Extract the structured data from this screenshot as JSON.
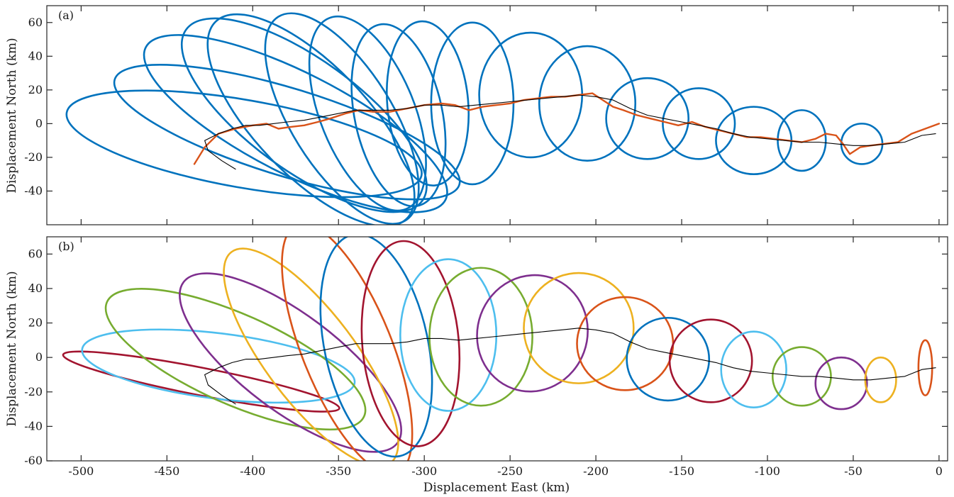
{
  "chart_data": [
    {
      "type": "line",
      "panel_label": "(a)",
      "xlabel": "",
      "ylabel": "Displacement North (km)",
      "xlim": [
        -520,
        5
      ],
      "ylim": [
        -60,
        70
      ],
      "yticks": [
        -40,
        -20,
        0,
        20,
        40,
        60
      ],
      "xticks": [
        -500,
        -450,
        -400,
        -350,
        -300,
        -250,
        -200,
        -150,
        -100,
        -50,
        0
      ],
      "show_xtick_labels": false,
      "colors": {
        "loops": "#0072BD",
        "orange": "#D95319",
        "black": "#000000"
      },
      "loops": [
        {
          "cx": -405,
          "cy": -12,
          "rx": 105,
          "ry": 26,
          "angle": -10
        },
        {
          "cx": -380,
          "cy": -5,
          "rx": 105,
          "ry": 26,
          "angle": -17
        },
        {
          "cx": -375,
          "cy": 0,
          "rx": 98,
          "ry": 30,
          "angle": -27
        },
        {
          "cx": -370,
          "cy": 5,
          "rx": 85,
          "ry": 33,
          "angle": -36
        },
        {
          "cx": -366,
          "cy": 2,
          "rx": 80,
          "ry": 33,
          "angle": -46
        },
        {
          "cx": -348,
          "cy": 3,
          "rx": 70,
          "ry": 30,
          "angle": -58
        },
        {
          "cx": -333,
          "cy": 6,
          "rx": 60,
          "ry": 28,
          "angle": -68
        },
        {
          "cx": -315,
          "cy": 5,
          "rx": 54,
          "ry": 26,
          "angle": -78
        },
        {
          "cx": -298,
          "cy": 12,
          "rx": 48,
          "ry": 24,
          "angle": -85
        },
        {
          "cx": -272,
          "cy": 12,
          "rx": 24,
          "ry": 48,
          "angle": 0
        },
        {
          "cx": -238,
          "cy": 17,
          "rx": 30,
          "ry": 37,
          "angle": 0
        },
        {
          "cx": -205,
          "cy": 12,
          "rx": 28,
          "ry": 34,
          "angle": 0
        },
        {
          "cx": -170,
          "cy": 3,
          "rx": 24,
          "ry": 24,
          "angle": 0
        },
        {
          "cx": -140,
          "cy": 0,
          "rx": 21,
          "ry": 21,
          "angle": 0
        },
        {
          "cx": -108,
          "cy": -10,
          "rx": 22,
          "ry": 20,
          "angle": 0
        },
        {
          "cx": -80,
          "cy": -10,
          "rx": 14,
          "ry": 18,
          "angle": 0
        },
        {
          "cx": -45,
          "cy": -12,
          "rx": 12,
          "ry": 12,
          "angle": 0
        }
      ],
      "series": [
        {
          "name": "",
          "color": "#D95319",
          "x": [
            -434,
            -428,
            -420,
            -410,
            -400,
            -392,
            -385,
            -378,
            -370,
            -362,
            -355,
            -346,
            -338,
            -330,
            -320,
            -310,
            -300,
            -290,
            -282,
            -274,
            -266,
            -258,
            -250,
            -242,
            -234,
            -226,
            -218,
            -210,
            -202,
            -196,
            -190,
            -184,
            -176,
            -168,
            -160,
            -152,
            -144,
            -136,
            -128,
            -120,
            -112,
            -104,
            -96,
            -88,
            -80,
            -72,
            -66,
            -60,
            -56,
            -52,
            -46,
            -40,
            -32,
            -24,
            -16,
            -8,
            0
          ],
          "y": [
            -24,
            -14,
            -6,
            -3,
            -1,
            0,
            -3,
            -2,
            -1,
            1,
            3,
            6,
            8,
            7,
            7,
            9,
            11,
            12,
            11,
            8,
            10,
            11,
            12,
            14,
            15,
            16,
            16,
            17,
            18,
            14,
            10,
            8,
            5,
            3,
            1,
            -1,
            1,
            -2,
            -4,
            -6,
            -8,
            -8,
            -9,
            -10,
            -11,
            -9,
            -6,
            -7,
            -12,
            -18,
            -14,
            -13,
            -12,
            -11,
            -6,
            -3,
            0
          ]
        },
        {
          "name": "",
          "color": "#000000",
          "x": [
            -410,
            -418,
            -426,
            -428,
            -420,
            -412,
            -404,
            -396,
            -388,
            -380,
            -370,
            -360,
            -350,
            -340,
            -330,
            -320,
            -310,
            -300,
            -290,
            -280,
            -270,
            -260,
            -250,
            -240,
            -230,
            -220,
            -210,
            -200,
            -190,
            -180,
            -170,
            -160,
            -150,
            -140,
            -130,
            -120,
            -110,
            -100,
            -90,
            -80,
            -70,
            -60,
            -50,
            -40,
            -30,
            -20,
            -10,
            -2
          ],
          "y": [
            -27,
            -22,
            -16,
            -10,
            -6,
            -3,
            -1,
            -1,
            0,
            1,
            2,
            4,
            6,
            8,
            8,
            8,
            9,
            11,
            11,
            10,
            11,
            12,
            13,
            14,
            15,
            16,
            17,
            16,
            14,
            9,
            5,
            3,
            1,
            -1,
            -3,
            -6,
            -8,
            -9,
            -10,
            -11,
            -11,
            -12,
            -13,
            -13,
            -12,
            -11,
            -7,
            -6
          ]
        }
      ]
    },
    {
      "type": "line",
      "panel_label": "(b)",
      "xlabel": "Displacement East (km)",
      "ylabel": "Displacement North (km)",
      "xlim": [
        -520,
        5
      ],
      "ylim": [
        -60,
        70
      ],
      "yticks": [
        -60,
        -40,
        -20,
        0,
        20,
        40,
        60
      ],
      "xticks": [
        -500,
        -450,
        -400,
        -350,
        -300,
        -250,
        -200,
        -150,
        -100,
        -50,
        0
      ],
      "xtick_labels": [
        "-500",
        "-450",
        "-400",
        "-350",
        "-300",
        "-250",
        "-200",
        "-150",
        "-100",
        "-50",
        "0"
      ],
      "ellipses": [
        {
          "cx": -430,
          "cy": -14,
          "rx": 82,
          "ry": 8,
          "angle": -11,
          "color": "#A2142F"
        },
        {
          "cx": -420,
          "cy": -5,
          "rx": 80,
          "ry": 19,
          "angle": -7,
          "color": "#4DBEEE"
        },
        {
          "cx": -410,
          "cy": -1,
          "rx": 82,
          "ry": 26,
          "angle": -24,
          "color": "#77AC30"
        },
        {
          "cx": -378,
          "cy": -3,
          "rx": 78,
          "ry": 28,
          "angle": -37,
          "color": "#7E2F8E"
        },
        {
          "cx": -366,
          "cy": 0,
          "rx": 77,
          "ry": 26,
          "angle": -53,
          "color": "#EDB120"
        },
        {
          "cx": -345,
          "cy": 5,
          "rx": 78,
          "ry": 26,
          "angle": -68,
          "color": "#D95319"
        },
        {
          "cx": -328,
          "cy": 7,
          "rx": 66,
          "ry": 30,
          "angle": -78,
          "color": "#0072BD"
        },
        {
          "cx": -308,
          "cy": 8,
          "rx": 60,
          "ry": 28,
          "angle": -85,
          "color": "#A2142F"
        },
        {
          "cx": -286,
          "cy": 13,
          "rx": 28,
          "ry": 44,
          "angle": 0,
          "color": "#4DBEEE"
        },
        {
          "cx": -267,
          "cy": 12,
          "rx": 30,
          "ry": 40,
          "angle": 0,
          "color": "#77AC30"
        },
        {
          "cx": -237,
          "cy": 14,
          "rx": 32,
          "ry": 34,
          "angle": -20,
          "color": "#7E2F8E"
        },
        {
          "cx": -210,
          "cy": 17,
          "rx": 32,
          "ry": 32,
          "angle": 0,
          "color": "#EDB120"
        },
        {
          "cx": -183,
          "cy": 8,
          "rx": 28,
          "ry": 27,
          "angle": 0,
          "color": "#D95319"
        },
        {
          "cx": -158,
          "cy": -1,
          "rx": 24,
          "ry": 24,
          "angle": 0,
          "color": "#0072BD"
        },
        {
          "cx": -133,
          "cy": -2,
          "rx": 24,
          "ry": 24,
          "angle": 0,
          "color": "#A2142F"
        },
        {
          "cx": -108,
          "cy": -7,
          "rx": 19,
          "ry": 22,
          "angle": 0,
          "color": "#4DBEEE"
        },
        {
          "cx": -80,
          "cy": -11,
          "rx": 17,
          "ry": 17,
          "angle": 0,
          "color": "#77AC30"
        },
        {
          "cx": -57,
          "cy": -15,
          "rx": 15,
          "ry": 15,
          "angle": 0,
          "color": "#7E2F8E"
        },
        {
          "cx": -34,
          "cy": -13,
          "rx": 9,
          "ry": 13,
          "angle": 0,
          "color": "#EDB120"
        },
        {
          "cx": -8,
          "cy": -6,
          "rx": 4,
          "ry": 16,
          "angle": 0,
          "color": "#D95319"
        }
      ],
      "series": [
        {
          "name": "",
          "color": "#000000",
          "x": [
            -410,
            -418,
            -426,
            -428,
            -420,
            -412,
            -404,
            -396,
            -388,
            -380,
            -370,
            -360,
            -350,
            -340,
            -330,
            -320,
            -310,
            -300,
            -290,
            -280,
            -270,
            -260,
            -250,
            -240,
            -230,
            -220,
            -210,
            -200,
            -190,
            -180,
            -170,
            -160,
            -150,
            -140,
            -130,
            -120,
            -110,
            -100,
            -90,
            -80,
            -70,
            -60,
            -50,
            -40,
            -30,
            -20,
            -10,
            -2
          ],
          "y": [
            -27,
            -22,
            -16,
            -10,
            -6,
            -3,
            -1,
            -1,
            0,
            1,
            2,
            4,
            6,
            8,
            8,
            8,
            9,
            11,
            11,
            10,
            11,
            12,
            13,
            14,
            15,
            16,
            17,
            16,
            14,
            9,
            5,
            3,
            1,
            -1,
            -3,
            -6,
            -8,
            -9,
            -10,
            -11,
            -11,
            -12,
            -13,
            -13,
            -12,
            -11,
            -7,
            -6
          ]
        }
      ]
    }
  ]
}
